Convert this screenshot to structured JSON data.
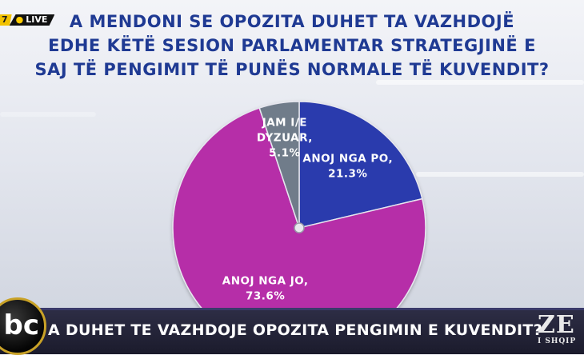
{
  "overlay": {
    "live_number": "7",
    "live_label": "LIVE"
  },
  "question_lines": [
    "A MENDONI SE OPOZITA DUHET TA VAZHDOJË",
    "EDHE KËTË SESION PARLAMENTAR STRATEGJINË E",
    "SAJ TË PENGIMIT TË PUNËS NORMALE TË KUVENDIT?"
  ],
  "chart_data": {
    "type": "pie",
    "slices": [
      {
        "label": "ANOJ NGA PO,",
        "label_lines": [
          "ANOJ NGA PO,"
        ],
        "value_text": "21.3%",
        "value": 21.3,
        "color": "#2b3aad"
      },
      {
        "label": "ANOJ NGA JO,",
        "label_lines": [
          "ANOJ NGA JO,"
        ],
        "value_text": "73.6%",
        "value": 73.6,
        "color": "#b62ea8"
      },
      {
        "label": "JAM I/E DYZUAR,",
        "label_lines": [
          "JAM I/E",
          "DYZUAR,"
        ],
        "value_text": "5.1%",
        "value": 5.1,
        "color": "#6f7c8a"
      }
    ],
    "start": "12 o'clock, clockwise"
  },
  "ticker": {
    "text": "A DUHET TE VAZHDOJE OPOZITA PENGIMIN E KUVENDIT?"
  },
  "logos": {
    "abc": "bc",
    "ze_main": "ZE",
    "ze_sub": "I SHQIP"
  }
}
